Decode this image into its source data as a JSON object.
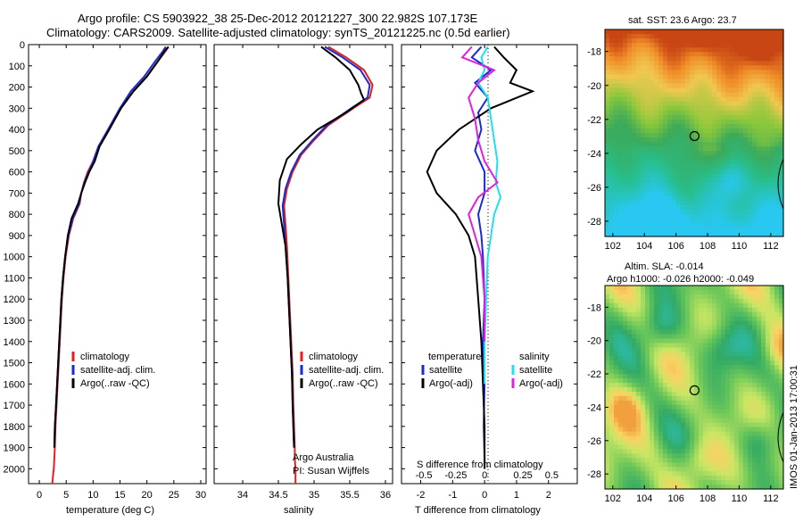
{
  "header": {
    "line1": "Argo profile: CS 5903922_38 25-Dec-2012 20121227_300 22.982S 107.173E",
    "line2": "Climatology: CARS2009. Satellite-adjusted climatology: synTS_20121225.nc (0.5d earlier)"
  },
  "colors": {
    "climatology": "#e02020",
    "satellite": "#1a2bd0",
    "argo": "#000000",
    "sat_salinity": "#20e0f0",
    "argo_salinity_adj": "#e020e0"
  },
  "chart_data": [
    {
      "type": "line",
      "name": "temperature-profile",
      "xlabel": "temperature (deg C)",
      "xlim": [
        -2,
        31
      ],
      "ylim": [
        2070,
        0
      ],
      "xticks": [
        0,
        5,
        10,
        15,
        20,
        25,
        30
      ],
      "yticks": [
        0,
        100,
        200,
        300,
        400,
        500,
        600,
        700,
        800,
        900,
        1000,
        1100,
        1200,
        1300,
        1400,
        1500,
        1600,
        1700,
        1800,
        1900,
        2000
      ],
      "legend": [
        "climatology",
        "satellite-adj. clim.",
        "Argo(..raw -QC)"
      ],
      "series": [
        {
          "name": "climatology",
          "color": "#e02020",
          "x": [
            24,
            23.5,
            22,
            20,
            17.5,
            15,
            12.8,
            11,
            10,
            9,
            8.3,
            7.8,
            7.5,
            6.3,
            5.5,
            4.9,
            4.5,
            4.2,
            4.0,
            3.8,
            3.6,
            3.4,
            3.2,
            3.0,
            2.9,
            2.8,
            2.7,
            2.6,
            2.5,
            2.4
          ],
          "y": [
            10,
            30,
            80,
            150,
            220,
            300,
            400,
            480,
            550,
            600,
            650,
            700,
            750,
            820,
            900,
            1000,
            1100,
            1200,
            1300,
            1400,
            1500,
            1600,
            1700,
            1800,
            1900,
            1950,
            2000,
            2020,
            2050,
            2070
          ]
        },
        {
          "name": "satellite-adj. clim.",
          "color": "#1a2bd0",
          "x": [
            23.5,
            23,
            21.5,
            19.5,
            17,
            15,
            12.8,
            11,
            10,
            9.2,
            8.4,
            7.8,
            7.4,
            6.2,
            5.4,
            4.8,
            4.4,
            4.1,
            3.9,
            3.7,
            3.5,
            3.3,
            3.1,
            2.9,
            2.8
          ],
          "y": [
            10,
            30,
            80,
            150,
            220,
            300,
            400,
            480,
            550,
            600,
            650,
            700,
            750,
            820,
            900,
            1000,
            1100,
            1200,
            1300,
            1400,
            1500,
            1600,
            1700,
            1800,
            1900
          ]
        },
        {
          "name": "Argo(..raw -QC)",
          "color": "#000000",
          "x": [
            24,
            23.3,
            22,
            20,
            17.5,
            15.2,
            13,
            11.2,
            10.3,
            9.3,
            8.5,
            7.8,
            7.2,
            6.0,
            5.3,
            4.8,
            4.4,
            4.1,
            3.9,
            3.7,
            3.5,
            3.3,
            3.1,
            2.9,
            2.8
          ],
          "y": [
            10,
            30,
            80,
            150,
            220,
            300,
            400,
            480,
            550,
            600,
            650,
            700,
            750,
            820,
            900,
            1000,
            1100,
            1200,
            1300,
            1400,
            1500,
            1600,
            1700,
            1800,
            1900
          ]
        }
      ]
    },
    {
      "type": "line",
      "name": "salinity-profile",
      "xlabel": "salinity",
      "xlim": [
        33.6,
        36.1
      ],
      "ylim": [
        2070,
        0
      ],
      "xticks": [
        34,
        34.5,
        35,
        35.5,
        36
      ],
      "xtick_labels": [
        "34",
        "34.5",
        "35",
        "35.5",
        "36"
      ],
      "legend": [
        "climatology",
        "satellite-adj. clim.",
        "Argo(..raw -QC)"
      ],
      "annotation": [
        "Argo Australia",
        "PI: Susan Wijffels"
      ],
      "series": [
        {
          "name": "climatology",
          "color": "#e02020",
          "x": [
            35.2,
            35.45,
            35.7,
            35.82,
            35.78,
            35.55,
            35.2,
            35.0,
            34.82,
            34.7,
            34.62,
            34.58,
            34.6,
            34.62,
            34.64,
            34.66,
            34.68,
            34.7,
            34.71,
            34.72,
            34.73,
            34.73,
            34.74,
            34.74
          ],
          "y": [
            10,
            60,
            120,
            190,
            250,
            300,
            380,
            450,
            520,
            600,
            680,
            760,
            850,
            950,
            1100,
            1250,
            1400,
            1550,
            1700,
            1800,
            1900,
            1950,
            2000,
            2070
          ]
        },
        {
          "name": "satellite-adj. clim.",
          "color": "#1a2bd0",
          "x": [
            35.15,
            35.4,
            35.65,
            35.78,
            35.75,
            35.52,
            35.18,
            34.98,
            34.8,
            34.68,
            34.6,
            34.56,
            34.58,
            34.6,
            34.63,
            34.65,
            34.67,
            34.69,
            34.7,
            34.71,
            34.72
          ],
          "y": [
            10,
            60,
            120,
            190,
            250,
            300,
            380,
            450,
            520,
            600,
            680,
            760,
            850,
            950,
            1100,
            1250,
            1400,
            1550,
            1700,
            1800,
            1900
          ]
        },
        {
          "name": "Argo(..raw -QC)",
          "color": "#000000",
          "x": [
            35.1,
            35.3,
            35.5,
            35.62,
            35.66,
            35.7,
            35.45,
            35.05,
            34.82,
            34.62,
            34.52,
            34.5,
            34.55,
            34.6,
            34.63,
            34.65,
            34.67,
            34.69,
            34.7,
            34.71,
            34.72
          ],
          "y": [
            10,
            60,
            120,
            190,
            230,
            260,
            320,
            400,
            470,
            540,
            640,
            750,
            850,
            950,
            1100,
            1250,
            1400,
            1550,
            1700,
            1800,
            1900
          ]
        }
      ]
    },
    {
      "type": "line",
      "name": "difference-profile",
      "xlabel": "T difference from climatology",
      "xlabel_top": "S difference from climatology",
      "xlim": [
        -2.6,
        2.9
      ],
      "ylim": [
        2070,
        0
      ],
      "xticks": [
        -2,
        -1,
        0,
        1,
        2
      ],
      "xtick_labels_top": [
        "-0.5",
        "-0.25",
        "0",
        "0.25",
        "0.5"
      ],
      "legend_temperature": [
        "temperature",
        "satellite",
        "Argo(-adj)"
      ],
      "legend_salinity": [
        "salinity",
        "satellite",
        "Argo(-adj)"
      ],
      "series": [
        {
          "name": "temperature satellite",
          "color": "#1a2bd0",
          "x": [
            -0.1,
            -0.4,
            0.2,
            -0.3,
            0.1,
            -0.2,
            -0.1,
            -0.3,
            0.0,
            0.0,
            -0.2,
            -0.1,
            -0.05,
            0.0,
            -0.05,
            0.0,
            -0.03,
            0.0,
            0.0
          ],
          "y": [
            10,
            60,
            120,
            180,
            250,
            320,
            400,
            500,
            600,
            700,
            800,
            900,
            1000,
            1200,
            1400,
            1600,
            1800,
            1950,
            2000
          ]
        },
        {
          "name": "temperature Argo(-adj)",
          "color": "#000000",
          "x": [
            0.3,
            0.6,
            1.0,
            0.8,
            1.5,
            0.2,
            -0.8,
            -1.5,
            -1.8,
            -1.5,
            -0.9,
            -0.5,
            -0.3,
            -0.2,
            -0.1,
            -0.05,
            0.0,
            0.0,
            0.0
          ],
          "y": [
            10,
            60,
            120,
            180,
            220,
            300,
            400,
            500,
            600,
            700,
            800,
            900,
            1000,
            1200,
            1400,
            1600,
            1800,
            1950,
            2000
          ]
        },
        {
          "name": "salinity satellite",
          "color": "#20e0f0",
          "x": [
            0.1,
            -0.1,
            0.0,
            -0.2,
            0.1,
            0.2,
            0.3,
            0.4,
            0.35,
            0.5,
            0.3,
            0.2,
            0.1,
            0.05,
            0.0,
            0.0
          ],
          "y": [
            10,
            60,
            120,
            180,
            250,
            350,
            450,
            550,
            650,
            720,
            800,
            900,
            1000,
            1200,
            1400,
            1600
          ]
        },
        {
          "name": "salinity Argo(-adj)",
          "color": "#e020e0",
          "x": [
            -0.4,
            -0.7,
            0.3,
            -0.2,
            -0.5,
            -0.3,
            -0.2,
            0.0,
            0.4,
            -0.2,
            -0.5,
            -0.3,
            -0.1,
            0.0,
            0.0
          ],
          "y": [
            10,
            60,
            120,
            180,
            250,
            350,
            450,
            550,
            650,
            720,
            800,
            900,
            1000,
            1200,
            1400
          ]
        }
      ]
    },
    {
      "type": "heatmap",
      "name": "sst-map",
      "title": "sat. SST: 23.6  Argo: 23.7",
      "xlim": [
        101.5,
        112.8
      ],
      "ylim": [
        -28.9,
        -16.7
      ],
      "xticks": [
        102,
        104,
        106,
        108,
        110,
        112
      ],
      "yticks": [
        -18,
        -20,
        -22,
        -24,
        -26,
        -28
      ],
      "marker": {
        "lon": 107.173,
        "lat": -22.982
      }
    },
    {
      "type": "heatmap",
      "name": "sla-map",
      "title": "Altim. SLA: -0.014",
      "subtitle": "Argo h1000: -0.026 h2000: -0.049",
      "xlim": [
        101.5,
        112.8
      ],
      "ylim": [
        -28.9,
        -16.7
      ],
      "xticks": [
        102,
        104,
        106,
        108,
        110,
        112
      ],
      "yticks": [
        -18,
        -20,
        -22,
        -24,
        -26,
        -28
      ],
      "marker": {
        "lon": 107.173,
        "lat": -22.982
      }
    }
  ],
  "footer": {
    "stamp": "IMOS 01-Jan-2013 17:00:31"
  }
}
